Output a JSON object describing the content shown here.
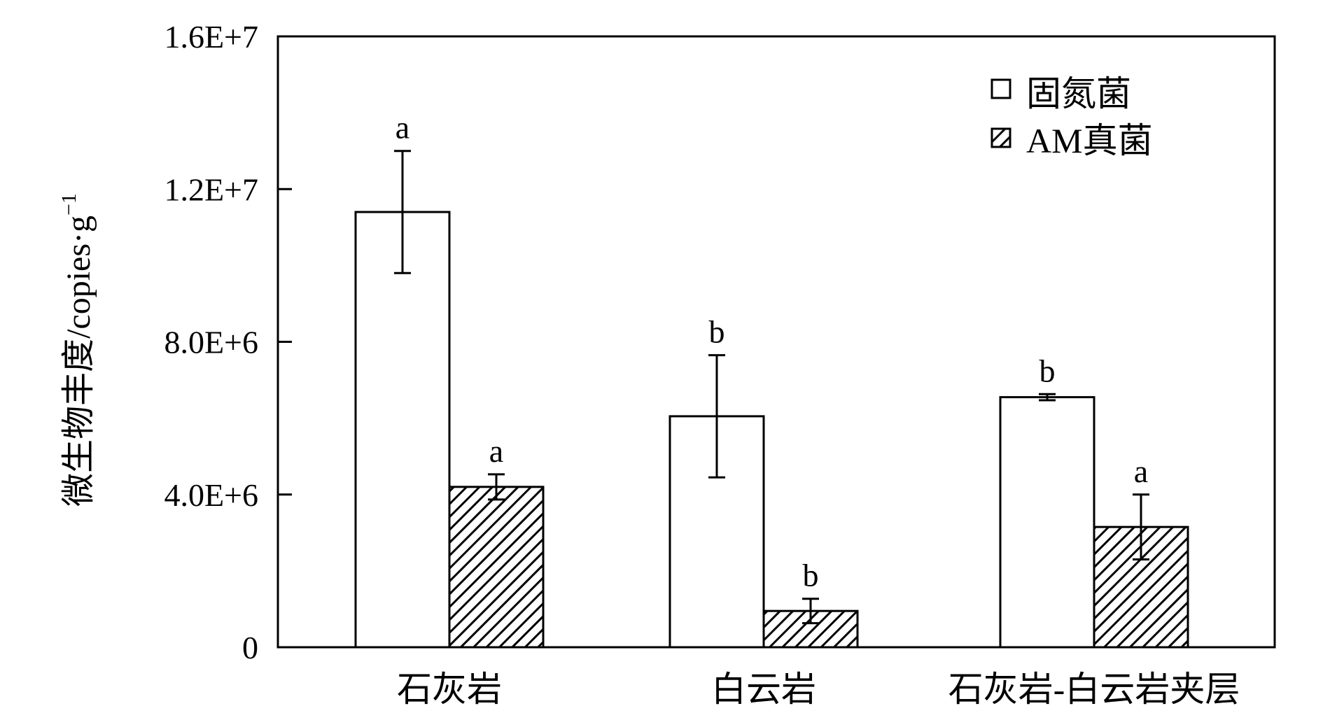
{
  "chart_data": {
    "type": "bar",
    "ylabel": "微生物丰度/copies·g",
    "ylabel_superscript": "−1",
    "y_ticks": [
      0,
      4000000,
      8000000,
      12000000,
      16000000
    ],
    "y_tick_labels": [
      "0",
      "4.0E+6",
      "8.0E+6",
      "1.2E+7",
      "1.6E+7"
    ],
    "ylim": [
      0,
      16000000
    ],
    "categories": [
      "石灰岩",
      "白云岩",
      "石灰岩-白云岩夹层"
    ],
    "series": [
      {
        "name": "固氮菌",
        "fill": "white",
        "values": [
          11400000,
          6050000,
          6550000
        ],
        "errors": [
          1600000,
          1600000,
          80000
        ],
        "significance": [
          "a",
          "b",
          "b"
        ]
      },
      {
        "name": "AM真菌",
        "fill": "hatched",
        "values": [
          4200000,
          950000,
          3150000
        ],
        "errors": [
          330000,
          320000,
          850000
        ],
        "significance": [
          "a",
          "b",
          "a"
        ]
      }
    ],
    "legend_position": "top-right",
    "grid": false
  }
}
